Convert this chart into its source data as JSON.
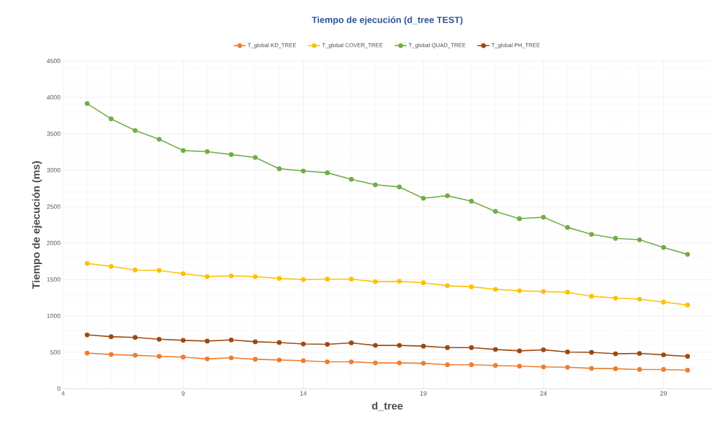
{
  "chart_data": {
    "type": "line",
    "title": "Tiempo de ejecución (d_tree TEST)",
    "xlabel": "d_tree",
    "ylabel": "Tiempo de ejecución (ms)",
    "x": [
      5,
      6,
      7,
      8,
      9,
      10,
      11,
      12,
      13,
      14,
      15,
      16,
      17,
      18,
      19,
      20,
      21,
      22,
      23,
      24,
      25,
      26,
      27,
      28,
      29,
      30
    ],
    "series": [
      {
        "name": "T_global KD_TREE",
        "color": "#ed7d31",
        "values": [
          490,
          470,
          460,
          445,
          435,
          410,
          425,
          405,
          395,
          385,
          370,
          370,
          355,
          355,
          350,
          330,
          330,
          320,
          310,
          300,
          295,
          280,
          275,
          265,
          265,
          255
        ]
      },
      {
        "name": "T_global COVER_TREE",
        "color": "#ffc000",
        "values": [
          1720,
          1680,
          1630,
          1625,
          1580,
          1540,
          1550,
          1540,
          1515,
          1500,
          1505,
          1505,
          1470,
          1475,
          1455,
          1415,
          1400,
          1365,
          1345,
          1335,
          1325,
          1270,
          1245,
          1230,
          1190,
          1150
        ]
      },
      {
        "name": "T_global QUAD_TREE",
        "color": "#70ad47",
        "values": [
          3915,
          3705,
          3545,
          3425,
          3270,
          3255,
          3215,
          3175,
          3020,
          2990,
          2965,
          2875,
          2800,
          2770,
          2615,
          2650,
          2575,
          2435,
          2335,
          2355,
          2215,
          2120,
          2065,
          2045,
          1940,
          1845
        ]
      },
      {
        "name": "T_global PH_TREE",
        "color": "#9e480e",
        "values": [
          740,
          715,
          705,
          680,
          665,
          655,
          670,
          645,
          635,
          615,
          610,
          630,
          595,
          595,
          585,
          565,
          565,
          540,
          520,
          535,
          505,
          500,
          480,
          485,
          465,
          445
        ]
      }
    ],
    "xlim": [
      4,
      31
    ],
    "ylim": [
      0,
      4500
    ],
    "xticks": [
      4,
      9,
      14,
      19,
      24,
      29
    ],
    "yticks": [
      0,
      500,
      1000,
      1500,
      2000,
      2500,
      3000,
      3500,
      4000,
      4500
    ],
    "grid": true,
    "legend": "top",
    "marker": "circle",
    "line_style": "solid"
  }
}
